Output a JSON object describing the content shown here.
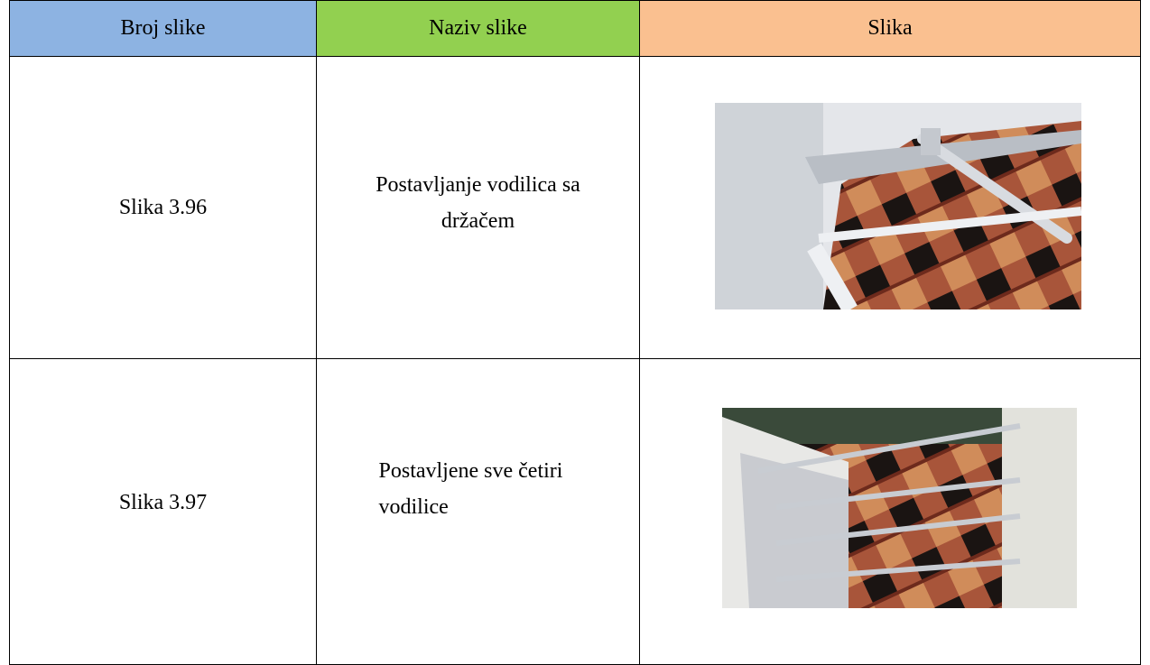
{
  "table": {
    "headers": [
      "Broj slike",
      "Naziv slike",
      "Slika"
    ],
    "rows": [
      [
        "Slika 3.96",
        "Postavljanje vodilica sa držačem"
      ],
      [
        "Slika 3.97",
        "Postavljene sve četiri vodilice"
      ]
    ]
  }
}
